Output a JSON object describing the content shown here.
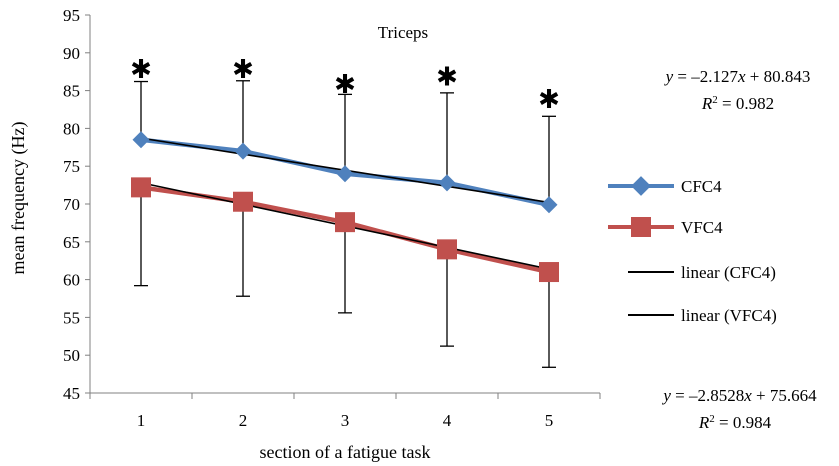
{
  "chart_data": {
    "type": "line",
    "title": "Triceps",
    "xlabel": "section of a fatigue task",
    "ylabel": "mean frequency (Hz)",
    "categories": [
      "1",
      "2",
      "3",
      "4",
      "5"
    ],
    "x": [
      1,
      2,
      3,
      4,
      5
    ],
    "xlim": [
      0.5,
      5.5
    ],
    "ylim": [
      45,
      95
    ],
    "yticks": [
      45,
      50,
      55,
      60,
      65,
      70,
      75,
      80,
      85,
      90,
      95
    ],
    "grid": false,
    "legend_position": "right",
    "series": [
      {
        "name": "CFC4",
        "marker": "diamond",
        "color": "#4F81BD",
        "values": [
          78.5,
          77.0,
          74.0,
          72.8,
          69.9
        ],
        "error_upper": [
          86.2,
          86.3,
          84.5,
          84.7,
          81.6
        ]
      },
      {
        "name": "VFC4",
        "marker": "square",
        "color": "#C0504D",
        "values": [
          72.2,
          70.3,
          67.6,
          64.0,
          61.0
        ],
        "error_lower": [
          59.2,
          57.8,
          55.6,
          51.2,
          48.4
        ]
      }
    ],
    "trendlines": [
      {
        "name": "linear (CFC4)",
        "slope": -2.127,
        "intercept": 80.843,
        "color": "#000000"
      },
      {
        "name": "linear (VFC4)",
        "slope": -2.8528,
        "intercept": 75.664,
        "color": "#000000"
      }
    ],
    "significance_markers": {
      "symbol": "✱",
      "values": [
        88.0,
        88.0,
        86.0,
        87.0,
        84.0
      ]
    },
    "annotations": {
      "eq1_line1": "y = –2.127x + 80.843",
      "eq1_line2": "R2 = 0.982",
      "eq2_line1": "y = –2.8528x + 75.664",
      "eq2_line2": "R2 = 0.984"
    }
  }
}
